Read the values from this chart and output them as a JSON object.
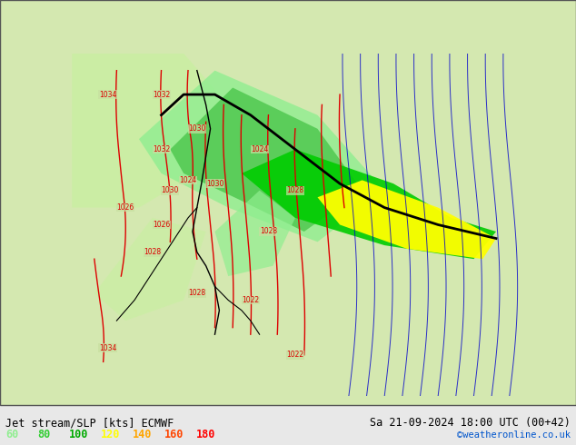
{
  "title_left": "Jet stream/SLP [kts] ECMWF",
  "title_right": "Sa 21-09-2024 18:00 UTC (00+42)",
  "credit": "©weatheronline.co.uk",
  "legend_values": [
    60,
    80,
    100,
    120,
    140,
    160,
    180
  ],
  "legend_colors": [
    "#90ee90",
    "#32cd32",
    "#00aa00",
    "#ffff00",
    "#ffa500",
    "#ff4500",
    "#ff0000"
  ],
  "bg_color": "#d4e8b0",
  "map_bg": "#c8dfa0",
  "border_color": "#000000",
  "bottom_bar_color": "#e8e8e8",
  "figsize": [
    6.34,
    4.9
  ],
  "dpi": 100
}
